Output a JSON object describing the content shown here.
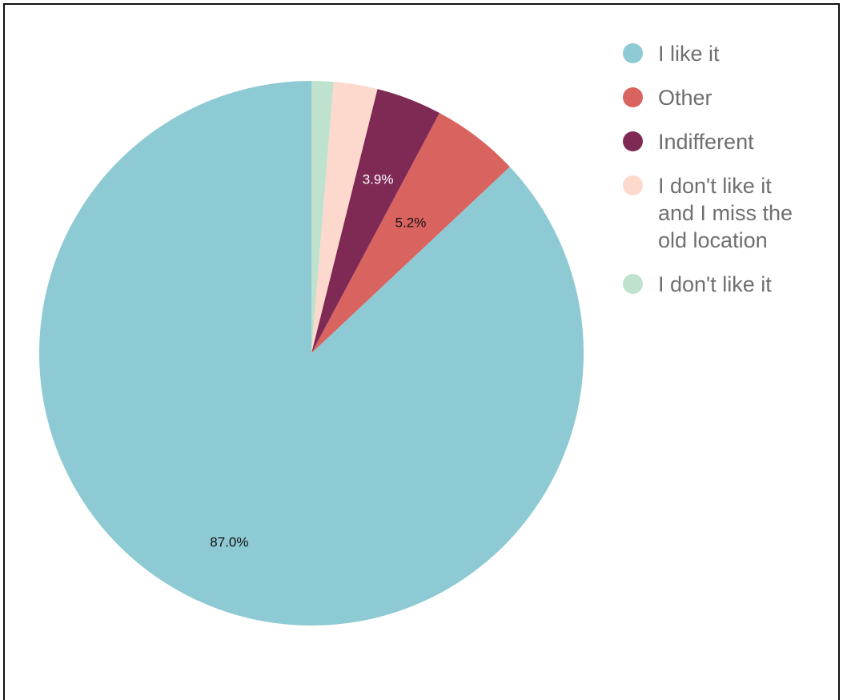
{
  "chart_data": {
    "type": "pie",
    "slices": [
      {
        "label": "I like it",
        "value": 87.0,
        "data_label": "87.0%",
        "color": "#8dcad3"
      },
      {
        "label": "Other",
        "value": 5.2,
        "data_label": "5.2%",
        "color": "#d9635f"
      },
      {
        "label": "Indifferent",
        "value": 3.9,
        "data_label": "3.9%",
        "color": "#7f2a55"
      },
      {
        "label": "I don't like it and I miss the old location",
        "value": 2.6,
        "data_label": "",
        "color": "#fcd9cc"
      },
      {
        "label": "I don't like it",
        "value": 1.3,
        "data_label": "",
        "color": "#bfe2cf"
      }
    ],
    "start_angle_deg": 0,
    "direction": "counterclockwise",
    "legend_position": "top-right"
  },
  "label_colors": [
    "#111111",
    "#111111",
    "#ffffff",
    "#111111",
    "#111111"
  ]
}
